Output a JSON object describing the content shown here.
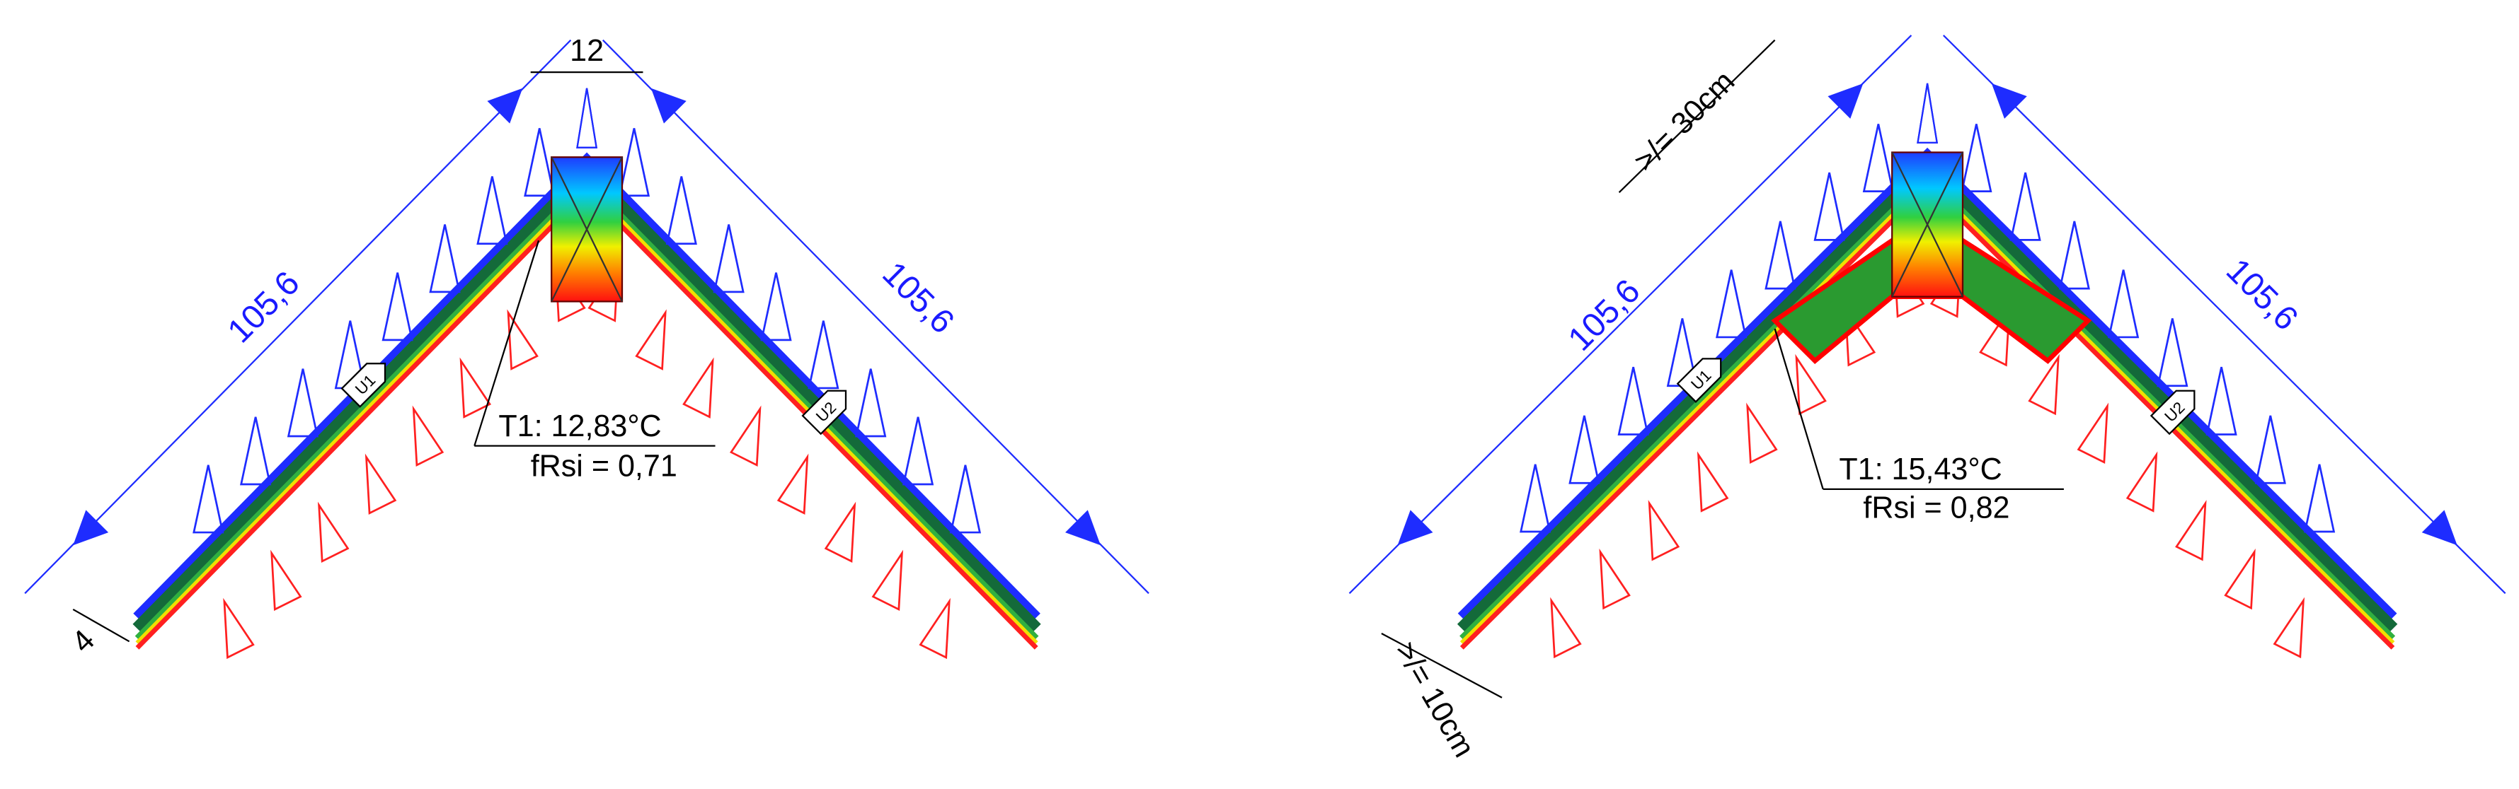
{
  "left": {
    "width_label": "12",
    "left_length": "105,6",
    "right_length": "105,6",
    "temperature": "T1: 12,83°C",
    "frsi": "fRsi = 0,71",
    "thickness_label": "4",
    "u1": "U1",
    "u2": "U2"
  },
  "right": {
    "spacing_top": ">/= 30cm",
    "left_length": "105,6",
    "right_length": "105,6",
    "temperature": "T1: 15,43°C",
    "frsi": "fRsi = 0,82",
    "spacing_bottom": ">/= 10cm",
    "u1": "U1",
    "u2": "U2"
  }
}
